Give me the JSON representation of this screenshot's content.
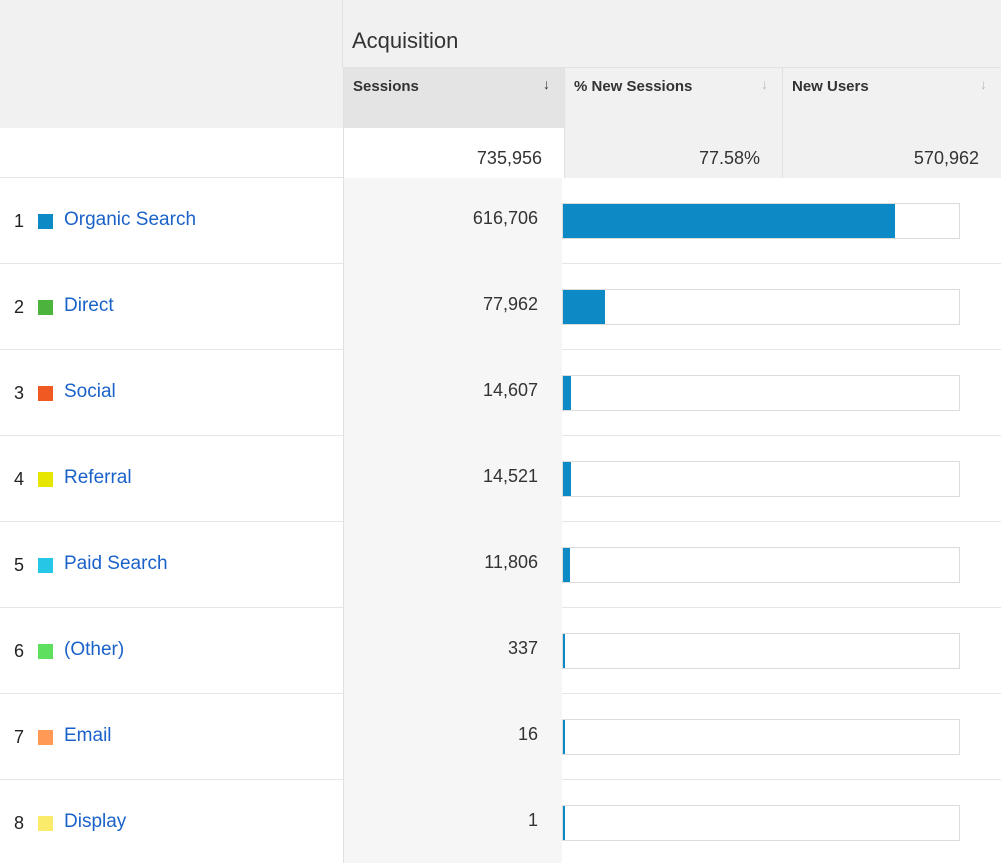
{
  "header": {
    "group_title": "Acquisition",
    "columns": [
      {
        "label": "Sessions",
        "sort_icon": "↓",
        "active": true
      },
      {
        "label": "% New Sessions",
        "sort_icon": "↓",
        "active": false
      },
      {
        "label": "New Users",
        "sort_icon": "↓",
        "active": false
      }
    ]
  },
  "totals": {
    "sessions": "735,956",
    "new_sessions_pct": "77.58%",
    "new_users": "570,962"
  },
  "bar_color": "#0b8ac6",
  "rows": [
    {
      "index": "1",
      "name": "Organic Search",
      "color": "#0b8ac6",
      "sessions": "616,706",
      "share": 0.838
    },
    {
      "index": "2",
      "name": "Direct",
      "color": "#4cb43c",
      "sessions": "77,962",
      "share": 0.106
    },
    {
      "index": "3",
      "name": "Social",
      "color": "#f05a22",
      "sessions": "14,607",
      "share": 0.02
    },
    {
      "index": "4",
      "name": "Referral",
      "color": "#e6e600",
      "sessions": "14,521",
      "share": 0.02
    },
    {
      "index": "5",
      "name": "Paid Search",
      "color": "#26c6e6",
      "sessions": "11,806",
      "share": 0.016
    },
    {
      "index": "6",
      "name": "(Other)",
      "color": "#5ee05e",
      "sessions": "337",
      "share": 0.0005
    },
    {
      "index": "7",
      "name": "Email",
      "color": "#ff9955",
      "sessions": "16",
      "share": 2e-05
    },
    {
      "index": "8",
      "name": "Display",
      "color": "#fbeb6a",
      "sessions": "1",
      "share": 1e-06
    }
  ]
}
